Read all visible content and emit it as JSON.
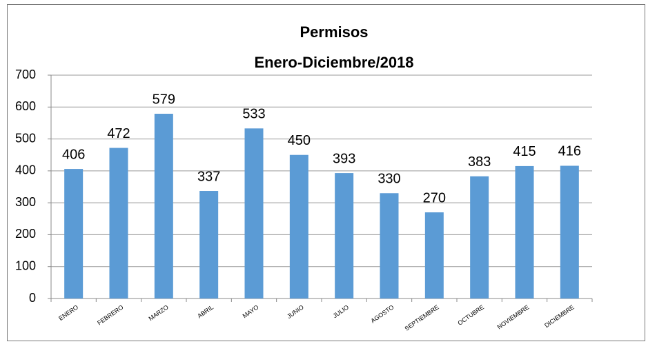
{
  "chart_data": {
    "type": "bar",
    "title": "Permisos",
    "subtitle": "Enero-Diciembre/2018",
    "categories": [
      "ENERO",
      "FEBRERO",
      "MARZO",
      "ABRIL",
      "MAYO",
      "JUNIO",
      "JULIO",
      "AGOSTO",
      "SEPTIEMBRE",
      "OCTUBRE",
      "NOVIEMBRE",
      "DICIEMBRE"
    ],
    "values": [
      406,
      472,
      579,
      337,
      533,
      450,
      393,
      330,
      270,
      383,
      415,
      416
    ],
    "color": "#5b9bd5",
    "ylim": [
      0,
      700
    ],
    "yticks": [
      0,
      100,
      200,
      300,
      400,
      500,
      600,
      700
    ],
    "grid": true
  }
}
